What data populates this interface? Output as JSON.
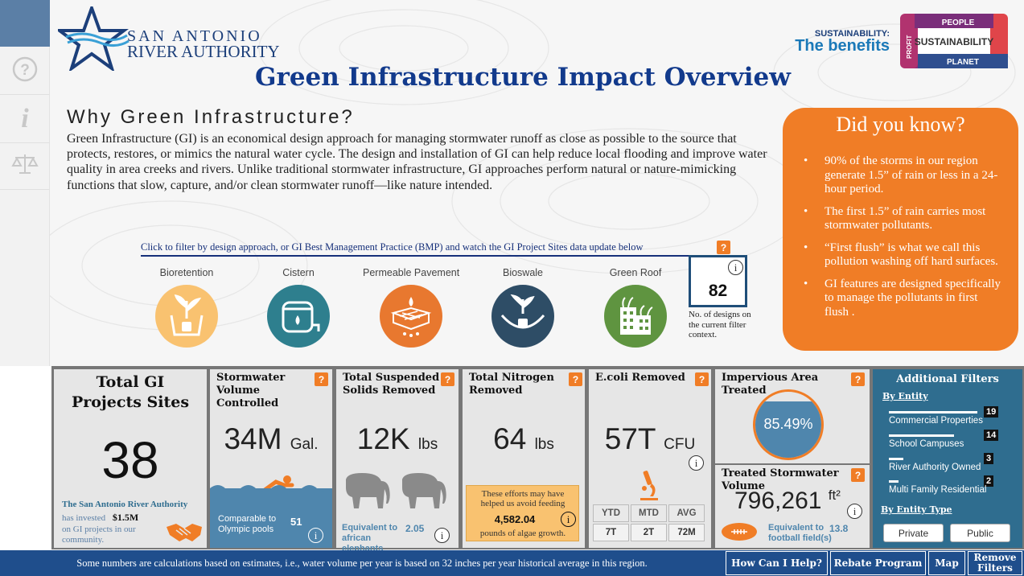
{
  "org": {
    "line1": "SAN ANTONIO",
    "line2": "RIVER AUTHORITY"
  },
  "sustainability": {
    "label": "SUSTAINABILITY:",
    "title": "The benefits",
    "center": "SUSTAINABILITY",
    "top": "PEOPLE",
    "bottom": "PLANET",
    "left": "PROFIT"
  },
  "title": "Green Infrastructure Impact Overview",
  "why": {
    "heading": "Why Green Infrastructure?",
    "body": "Green Infrastructure (GI) is an economical design approach for managing stormwater runoff as close as possible to the source that protects, restores, or mimics the natural water cycle. The design and installation of GI can help reduce local flooding and improve water quality in area creeks and rivers. Unlike traditional stormwater infrastructure, GI approaches perform natural or nature-mimicking functions that slow, capture, and/or clean stormwater runoff—like nature intended."
  },
  "did_you_know": {
    "title": "Did you know?",
    "items": [
      "90% of the storms in our region generate 1.5” of rain or less in a 24-hour period.",
      "The first 1.5” of rain carries most stormwater pollutants.",
      "“First flush” is what we call this pollution washing off hard surfaces.",
      "GI features are designed specifically to manage the pollutants in first flush ."
    ]
  },
  "bmp_filter": {
    "instruction": "Click to filter by design approach, or GI Best Management Practice (BMP) and watch the GI Project Sites data update below",
    "items": [
      {
        "label": "Bioretention",
        "color": "#f9c270"
      },
      {
        "label": "Cistern",
        "color": "#2e7f8e"
      },
      {
        "label": "Permeable Pavement",
        "color": "#e8782f"
      },
      {
        "label": "Bioswale",
        "color": "#2e4d66"
      },
      {
        "label": "Green Roof",
        "color": "#5f9440"
      }
    ],
    "count": "82",
    "count_caption": "No. of designs on the current filter context."
  },
  "cards": {
    "total": {
      "title": "Total GI Projects Sites",
      "value": "38",
      "org": "The San Antonio River Authority",
      "invested_pre": "has invested",
      "invested": "$1.5M",
      "invested_post": "on GI projects in our community."
    },
    "stormwater": {
      "title": "Stormwater Volume Controlled",
      "value": "34M",
      "unit": "Gal.",
      "compare": "Comparable to Olympic pools",
      "compare_value": "51"
    },
    "tss": {
      "title": "Total Suspended Solids Removed",
      "value": "12K",
      "unit": "lbs",
      "equiv": "Equivalent to african elephants",
      "equiv_value": "2.05"
    },
    "nitrogen": {
      "title": "Total Nitrogen Removed",
      "value": "64",
      "unit": "lbs",
      "note_pre": "These efforts may have helped us avoid feeding",
      "note_value": "4,582.04",
      "note_post": "pounds of algae growth."
    },
    "ecoli": {
      "title": "E.coli Removed",
      "value": "57T",
      "unit": "CFU",
      "headers": [
        "YTD",
        "MTD",
        "AVG"
      ],
      "values": [
        "7T",
        "2T",
        "72M"
      ]
    },
    "impervious": {
      "title": "Impervious Area Treated",
      "value": "85.49%",
      "fill": 0.8549
    },
    "treated": {
      "title": "Treated Stormwater Volume",
      "value": "796,261",
      "unit": "ft²",
      "equiv": "Equivalent to football field(s)",
      "equiv_value": "13.8"
    }
  },
  "additional_filters": {
    "title": "Additional Filters",
    "by_entity": "By Entity",
    "entities": [
      {
        "label": "Commercial Properties",
        "count": "19",
        "share": 1.0
      },
      {
        "label": "School Campuses",
        "count": "14",
        "share": 0.74
      },
      {
        "label": "River Authority Owned",
        "count": "3",
        "share": 0.16
      },
      {
        "label": "Multi Family Residential",
        "count": "2",
        "share": 0.11
      }
    ],
    "by_entity_type": "By Entity Type",
    "type_buttons": [
      "Private",
      "Public"
    ]
  },
  "footer": {
    "note": "Some numbers are calculations based on estimates, i.e., water volume per year is based on 32 inches per year historical average in this region.",
    "buttons": [
      "How Can I Help?",
      "Rebate Program",
      "Map",
      "Remove Filters"
    ]
  },
  "icons": {
    "help": "help-icon",
    "info": "info-icon",
    "legal": "scales-icon",
    "question": "question-icon"
  },
  "colors": {
    "navy": "#123a8c",
    "orange": "#f07d26",
    "teal": "#2f6d8f",
    "footer": "#1f4e8c"
  }
}
